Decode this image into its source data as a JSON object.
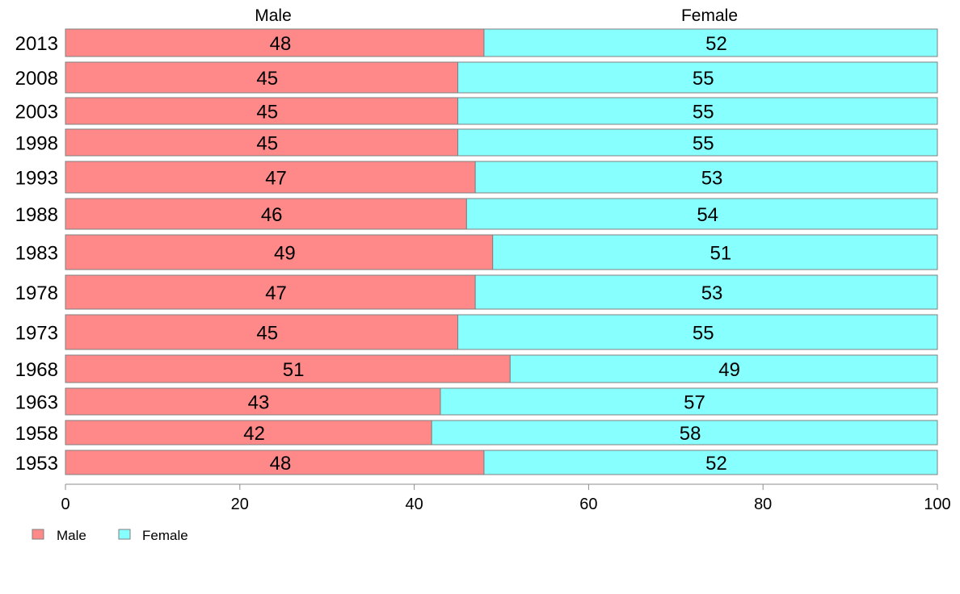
{
  "chart_data": {
    "type": "bar",
    "orientation": "horizontal",
    "stacked": true,
    "categories": [
      "2013",
      "2008",
      "2003",
      "1998",
      "1993",
      "1988",
      "1983",
      "1978",
      "1973",
      "1968",
      "1963",
      "1958",
      "1953"
    ],
    "series": [
      {
        "name": "Male",
        "values": [
          48,
          45,
          45,
          45,
          47,
          46,
          49,
          47,
          45,
          51,
          43,
          42,
          48
        ],
        "color": "#ff8888"
      },
      {
        "name": "Female",
        "values": [
          52,
          55,
          55,
          55,
          53,
          54,
          51,
          53,
          55,
          49,
          57,
          58,
          52
        ],
        "color": "#88ffff"
      }
    ],
    "data_labels": {
      "Male": [
        "48",
        "45",
        "45",
        "45",
        "47",
        "46",
        "49",
        "47",
        "45",
        "51",
        "43",
        "42",
        "48"
      ],
      "Female": [
        "52",
        "55",
        "55",
        "55",
        "53",
        "54",
        "51",
        "53",
        "55",
        "49",
        "57",
        "58",
        "52"
      ]
    },
    "column_headers": [
      "Male",
      "Female"
    ],
    "xlim": [
      0,
      100
    ],
    "x_ticks": [
      "0",
      "20",
      "40",
      "60",
      "80",
      "100"
    ],
    "legend": {
      "position": "bottom-left",
      "entries": [
        "Male",
        "Female"
      ]
    },
    "grid": false,
    "title": "",
    "xlabel": "",
    "ylabel": ""
  }
}
